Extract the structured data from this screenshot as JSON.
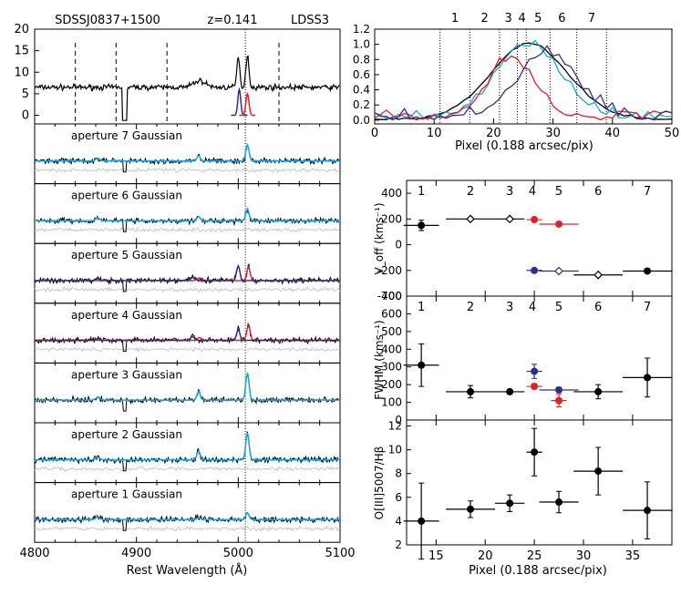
{
  "chart_data": [
    {
      "id": "spectra",
      "type": "line",
      "title_left": "SDSSJ0837+1500",
      "title_mid": "z=0.141",
      "title_right": "LDSS3",
      "xlabel": "Rest Wavelength (Å)",
      "xlim": [
        4800,
        5100
      ],
      "xticks": [
        "4800",
        "4900",
        "5000",
        "5100"
      ],
      "top_ylim": [
        -2,
        20
      ],
      "top_yticks": [
        "0",
        "5",
        "10",
        "15",
        "20"
      ],
      "oiii_marker": 5007,
      "dashed_marks": [
        4840,
        4880,
        4930,
        5040
      ],
      "apertures": [
        {
          "label": "aperture 7  Gaussian",
          "series": [
            "black",
            "cyan"
          ],
          "peaks": [
            0.6
          ]
        },
        {
          "label": "aperture 6  Gaussian",
          "series": [
            "black",
            "cyan"
          ],
          "peaks": [
            0.45
          ]
        },
        {
          "label": "aperture 5  Gaussian",
          "series": [
            "black",
            "navy",
            "red"
          ],
          "peaks": [
            0.55,
            0.5
          ]
        },
        {
          "label": "aperture 4  Gaussian",
          "series": [
            "black",
            "navy",
            "red"
          ],
          "peaks": [
            0.4,
            0.55
          ]
        },
        {
          "label": "aperture 3  Gaussian",
          "series": [
            "black",
            "cyan"
          ],
          "peaks": [
            1.0
          ]
        },
        {
          "label": "aperture 2  Gaussian",
          "series": [
            "black",
            "cyan"
          ],
          "peaks": [
            1.0
          ]
        },
        {
          "label": "aperture 1  Gaussian",
          "series": [
            "black",
            "cyan"
          ],
          "peaks": [
            0.25
          ]
        }
      ]
    },
    {
      "id": "profile",
      "type": "line",
      "xlabel": "Pixel (0.188 arcsec/pix)",
      "xlim": [
        0,
        50
      ],
      "ylim": [
        -0.05,
        1.2
      ],
      "xticks": [
        "0",
        "10",
        "20",
        "30",
        "40",
        "50"
      ],
      "yticks": [
        "0.0",
        "0.2",
        "0.4",
        "0.6",
        "0.8",
        "1.0",
        "1.2"
      ],
      "apertures": [
        {
          "label": "1",
          "x": 13.5
        },
        {
          "label": "2",
          "x": 18.5
        },
        {
          "label": "3",
          "x": 22.5
        },
        {
          "label": "4",
          "x": 24.8
        },
        {
          "label": "5",
          "x": 27.5
        },
        {
          "label": "6",
          "x": 31.5
        },
        {
          "label": "7",
          "x": 36.5
        }
      ],
      "boundaries": [
        11,
        16,
        21,
        24,
        25.5,
        29.5,
        34,
        39
      ]
    },
    {
      "id": "voff",
      "type": "scatter",
      "ylabel": "V_off (kms⁻¹)",
      "xlim": [
        12,
        39
      ],
      "ylim": [
        -400,
        500
      ],
      "yticks": [
        "-400",
        "-200",
        "0",
        "200",
        "400"
      ],
      "apertures": [
        "1",
        "2",
        "3",
        "4",
        "5",
        "6",
        "7"
      ],
      "points": [
        {
          "x": 13.5,
          "y": 150,
          "xerr": 1.8,
          "yerr": 40,
          "color": "black"
        },
        {
          "x": 18.5,
          "y": 200,
          "xerr": 2.5,
          "yerr": 8,
          "color": "black",
          "marker": "diamond"
        },
        {
          "x": 22.5,
          "y": 200,
          "xerr": 1.5,
          "yerr": 8,
          "color": "black",
          "marker": "diamond"
        },
        {
          "x": 25.0,
          "y": 195,
          "xerr": 0.8,
          "yerr": 15,
          "color": "red"
        },
        {
          "x": 27.5,
          "y": 160,
          "xerr": 2.0,
          "yerr": 15,
          "color": "red"
        },
        {
          "x": 25.0,
          "y": -200,
          "xerr": 0.8,
          "yerr": 10,
          "color": "navy"
        },
        {
          "x": 27.5,
          "y": -205,
          "xerr": 2.0,
          "yerr": 10,
          "color": "navy",
          "marker": "diamond"
        },
        {
          "x": 31.5,
          "y": -235,
          "xerr": 2.5,
          "yerr": 8,
          "color": "black",
          "marker": "diamond"
        },
        {
          "x": 36.5,
          "y": -205,
          "xerr": 2.5,
          "yerr": 15,
          "color": "black"
        }
      ]
    },
    {
      "id": "fwhm",
      "type": "scatter",
      "ylabel": "FWHM (kms⁻¹)",
      "xlim": [
        12,
        39
      ],
      "ylim": [
        0,
        700
      ],
      "yticks": [
        "0",
        "100",
        "200",
        "300",
        "400",
        "500",
        "600",
        "700"
      ],
      "apertures": [
        "1",
        "2",
        "3",
        "4",
        "5",
        "6",
        "7"
      ],
      "points": [
        {
          "x": 13.5,
          "y": 310,
          "xerr": 1.8,
          "yerr": 120,
          "color": "black"
        },
        {
          "x": 18.5,
          "y": 160,
          "xerr": 2.5,
          "yerr": 35,
          "color": "black"
        },
        {
          "x": 22.5,
          "y": 160,
          "xerr": 1.5,
          "yerr": 10,
          "color": "black"
        },
        {
          "x": 25.0,
          "y": 275,
          "xerr": 0.8,
          "yerr": 40,
          "color": "navy"
        },
        {
          "x": 25.0,
          "y": 190,
          "xerr": 0.8,
          "yerr": 15,
          "color": "red"
        },
        {
          "x": 27.5,
          "y": 170,
          "xerr": 2.0,
          "yerr": 15,
          "color": "navy"
        },
        {
          "x": 27.5,
          "y": 110,
          "xerr": 0.8,
          "yerr": 35,
          "color": "red"
        },
        {
          "x": 31.5,
          "y": 160,
          "xerr": 2.5,
          "yerr": 40,
          "color": "black"
        },
        {
          "x": 36.5,
          "y": 240,
          "xerr": 2.5,
          "yerr": 110,
          "color": "black"
        }
      ]
    },
    {
      "id": "ratio",
      "type": "scatter",
      "ylabel": "O[III]5007/Hβ",
      "xlabel": "Pixel (0.188 arcsec/pix)",
      "xlim": [
        12,
        39
      ],
      "ylim": [
        2,
        12.5
      ],
      "xticks": [
        "15",
        "20",
        "25",
        "30",
        "35"
      ],
      "yticks": [
        "2",
        "4",
        "6",
        "8",
        "10",
        "12"
      ],
      "points": [
        {
          "x": 13.5,
          "y": 4.0,
          "xerr": 1.8,
          "yerr": 3.2,
          "color": "black"
        },
        {
          "x": 18.5,
          "y": 5.0,
          "xerr": 2.5,
          "yerr": 0.7,
          "color": "black"
        },
        {
          "x": 22.5,
          "y": 5.5,
          "xerr": 1.5,
          "yerr": 0.7,
          "color": "black"
        },
        {
          "x": 25.0,
          "y": 9.8,
          "xerr": 0.8,
          "yerr": 2.0,
          "color": "black"
        },
        {
          "x": 27.5,
          "y": 5.6,
          "xerr": 2.0,
          "yerr": 0.9,
          "color": "black"
        },
        {
          "x": 31.5,
          "y": 8.2,
          "xerr": 2.5,
          "yerr": 2.0,
          "color": "black"
        },
        {
          "x": 36.5,
          "y": 4.9,
          "xerr": 2.5,
          "yerr": 2.4,
          "color": "black"
        }
      ]
    }
  ],
  "colors": {
    "black": "#000000",
    "cyan": "#1aa7d8",
    "navy": "#2e2e8a",
    "red": "#e0212a",
    "gray": "#bbbbbb"
  }
}
